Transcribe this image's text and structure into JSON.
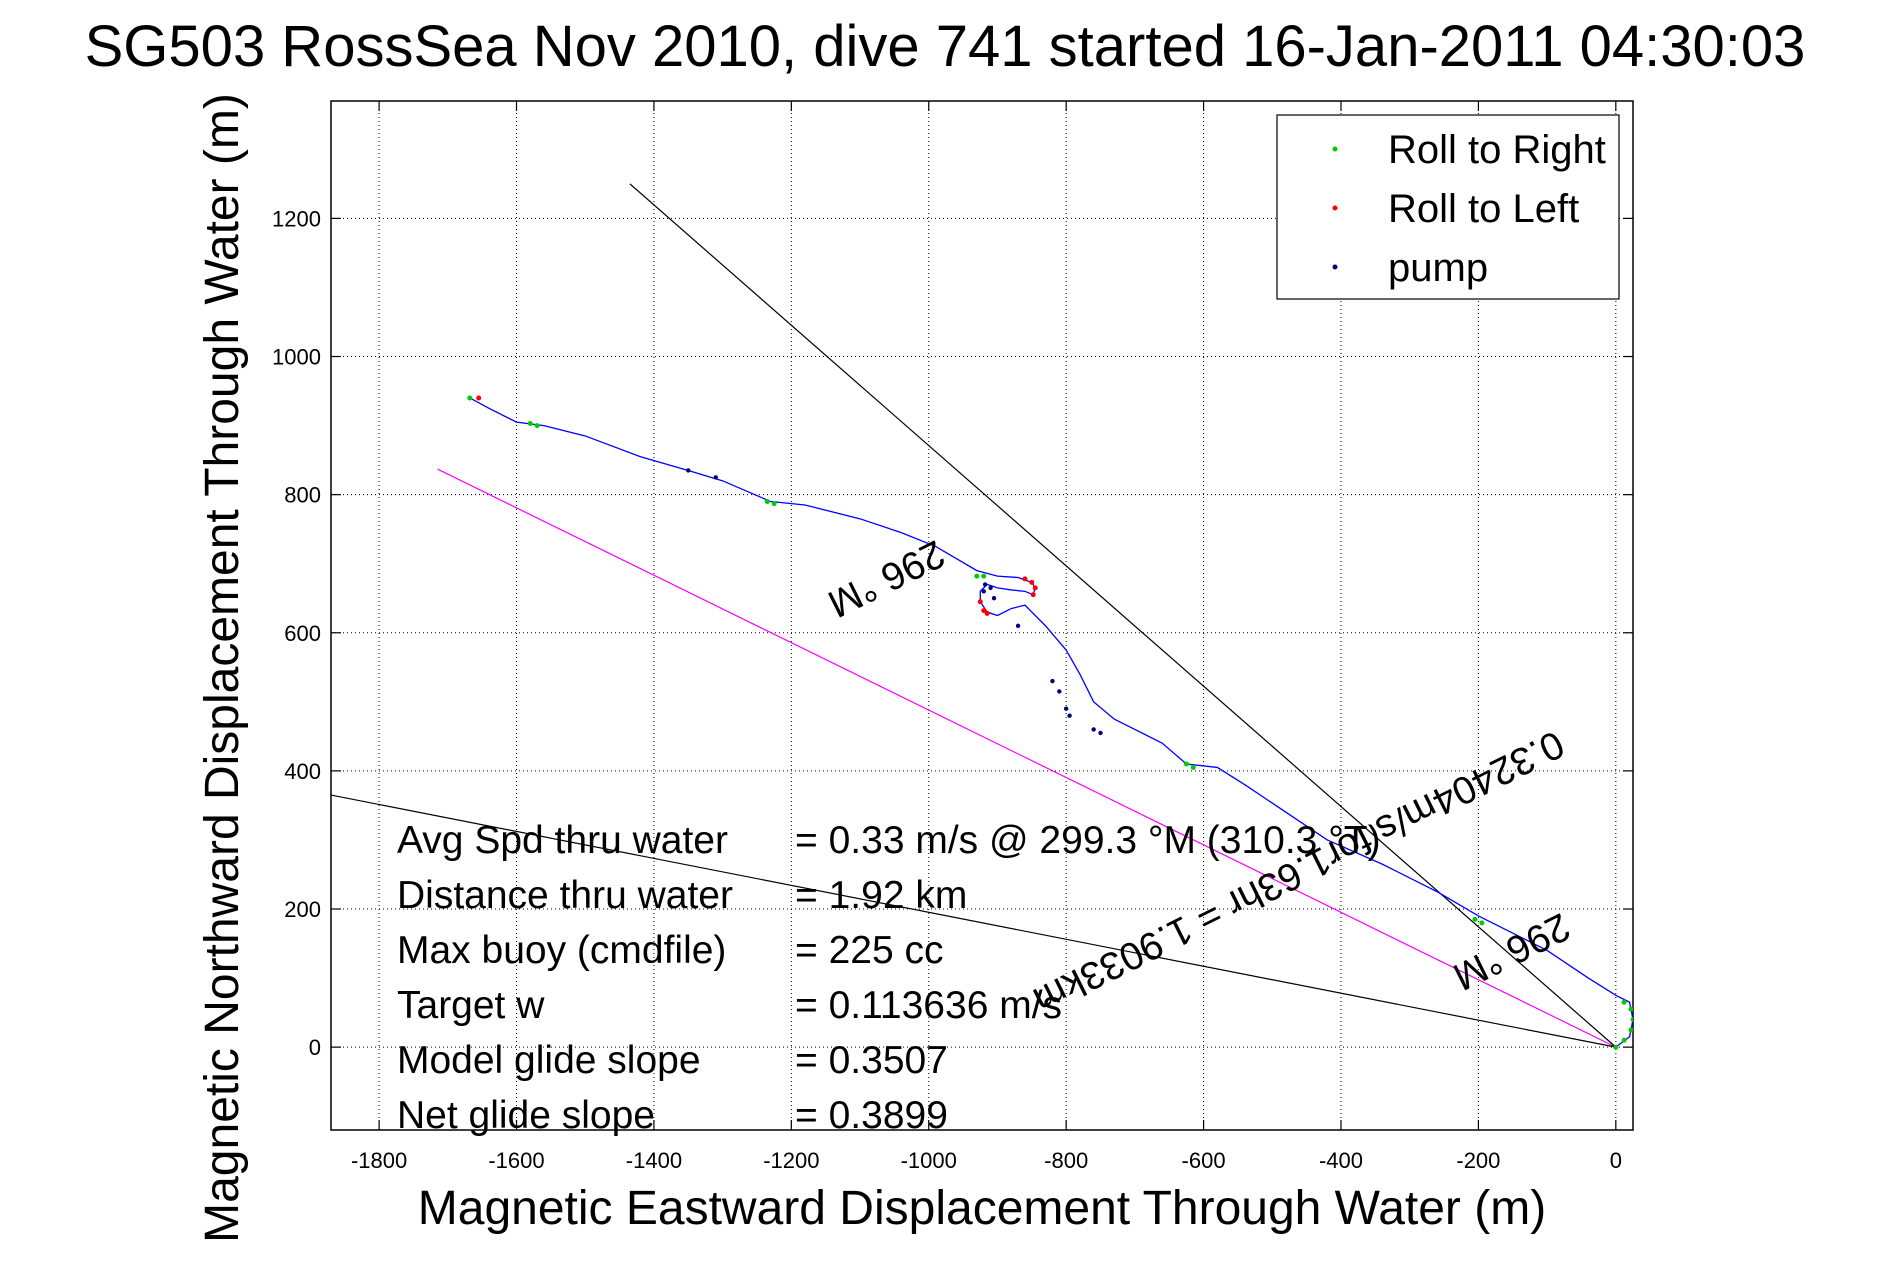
{
  "chart_data": {
    "type": "line",
    "title": "SG503 RossSea Nov 2010, dive 741 started 16-Jan-2011 04:30:03",
    "xlabel": "Magnetic Eastward Displacement Through Water (m)",
    "ylabel": "Magnetic Northward Displacement Through Water (m)",
    "xlim": [
      -1870,
      25
    ],
    "ylim": [
      -120,
      1370
    ],
    "xticks": [
      -1800,
      -1600,
      -1400,
      -1200,
      -1000,
      -800,
      -600,
      -400,
      -200,
      0
    ],
    "yticks": [
      0,
      200,
      400,
      600,
      800,
      1000,
      1200
    ],
    "grid": true,
    "legend_position": "top-right",
    "legend": [
      {
        "label": "Roll to Right",
        "color": "#00cc00"
      },
      {
        "label": "Roll to Left",
        "color": "#ff0000"
      },
      {
        "label": "pump",
        "color": "#000080"
      }
    ],
    "series": [
      {
        "color": "#0000ff",
        "x": [
          0,
          20,
          25,
          20,
          0,
          -40,
          -100,
          -160,
          -200,
          -260,
          -340,
          -420,
          -480,
          -540,
          -580,
          -625,
          -660,
          -700,
          -730,
          -760,
          -780,
          -800,
          -830,
          -850,
          -860,
          -880,
          -900,
          -915,
          -925,
          -925,
          -915,
          -900,
          -880,
          -860,
          -848,
          -845,
          -850,
          -870,
          -900,
          -930,
          -990,
          -1040,
          -1100,
          -1180,
          -1230,
          -1300,
          -1350,
          -1420,
          -1500,
          -1560,
          -1600,
          -1640,
          -1668
        ],
        "y": [
          0,
          15,
          40,
          65,
          75,
          100,
          140,
          170,
          190,
          225,
          265,
          300,
          340,
          380,
          405,
          410,
          440,
          460,
          475,
          500,
          540,
          575,
          610,
          630,
          640,
          635,
          625,
          630,
          645,
          660,
          670,
          665,
          662,
          660,
          655,
          665,
          673,
          680,
          682,
          690,
          725,
          745,
          765,
          785,
          790,
          820,
          835,
          855,
          885,
          900,
          905,
          925,
          940
        ]
      }
    ],
    "roll_to_right": [
      [
        0,
        0
      ],
      [
        12,
        10
      ],
      [
        22,
        25
      ],
      [
        25,
        40
      ],
      [
        22,
        55
      ],
      [
        12,
        65
      ],
      [
        -205,
        185
      ],
      [
        -195,
        180
      ],
      [
        -625,
        410
      ],
      [
        -615,
        405
      ],
      [
        -930,
        682
      ],
      [
        -920,
        682
      ],
      [
        -1235,
        790
      ],
      [
        -1225,
        787
      ],
      [
        -1580,
        903
      ],
      [
        -1570,
        900
      ],
      [
        -1668,
        940
      ]
    ],
    "roll_to_left": [
      [
        -848,
        655
      ],
      [
        -845,
        665
      ],
      [
        -850,
        673
      ],
      [
        -860,
        678
      ],
      [
        -925,
        645
      ],
      [
        -920,
        632
      ],
      [
        -915,
        628
      ],
      [
        -1655,
        940
      ]
    ],
    "pump_points": [
      [
        -920,
        660
      ],
      [
        -918,
        670
      ],
      [
        -910,
        665
      ],
      [
        -905,
        650
      ],
      [
        -870,
        610
      ],
      [
        -820,
        530
      ],
      [
        -810,
        515
      ],
      [
        -800,
        490
      ],
      [
        -795,
        480
      ],
      [
        -760,
        460
      ],
      [
        -750,
        455
      ],
      [
        -1350,
        835
      ],
      [
        -1310,
        825
      ]
    ],
    "reference_lines": [
      {
        "name": "296 °M",
        "color": "#ff00ff",
        "x": [
          0,
          -1715
        ],
        "y": [
          0,
          837
        ]
      },
      {
        "name": "",
        "color": "#000000",
        "x": [
          0,
          -1435
        ],
        "y": [
          0,
          1250
        ]
      },
      {
        "name": "",
        "color": "#000000",
        "x": [
          0,
          -1870
        ],
        "y": [
          0,
          365
        ]
      }
    ],
    "annotations": [
      {
        "text": "296 °M",
        "x": -1070,
        "y": 695,
        "rotation": 153.5
      },
      {
        "text": "296 °M",
        "x": -160,
        "y": 155,
        "rotation": 153.5
      },
      {
        "text": "0.32404m/s for1.63hr = 1.9033km",
        "x": -470,
        "y": 270,
        "rotation": 153.5
      }
    ],
    "stats": [
      {
        "label": "Avg Spd thru water",
        "value": "=  0.33 m/s @ 299.3 °M (310.3 °T)"
      },
      {
        "label": "Distance thru water",
        "value": "=  1.92 km"
      },
      {
        "label": "Max buoy (cmdfile)",
        "value": "= 225 cc"
      },
      {
        "label": "Target w",
        "value": "= 0.113636 m/s"
      },
      {
        "label": "Model glide slope",
        "value": "= 0.3507"
      },
      {
        "label": "Net glide slope",
        "value": "= 0.3899"
      }
    ]
  }
}
